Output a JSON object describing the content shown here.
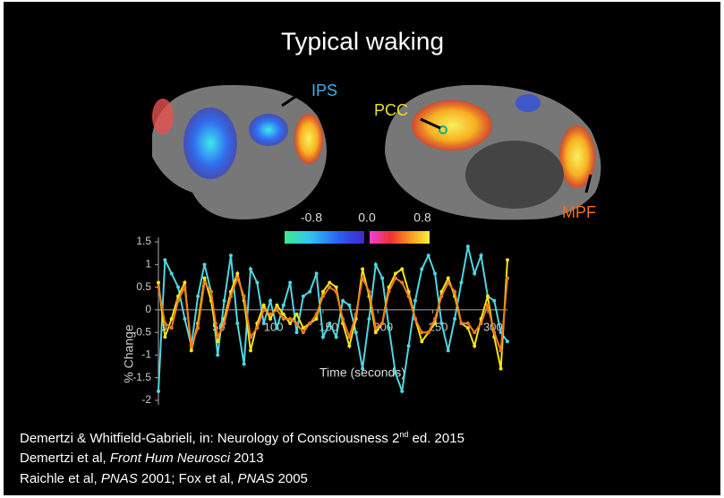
{
  "title": "Typical waking",
  "brain_labels": {
    "ips": "IPS",
    "pcc": "PCC",
    "mpf": "MPF"
  },
  "colorbar": {
    "ticks": [
      {
        "value": -0.8,
        "label": "-0.8"
      },
      {
        "value": 0,
        "label": "0.0"
      },
      {
        "value": 0.8,
        "label": "0.8"
      }
    ]
  },
  "chart_data": {
    "type": "line",
    "xlabel": "Time (seconds)",
    "ylabel": "% Change",
    "x": [
      0,
      6,
      12,
      18,
      24,
      30,
      36,
      42,
      48,
      54,
      60,
      66,
      72,
      78,
      84,
      90,
      96,
      102,
      108,
      114,
      120,
      126,
      132,
      138,
      144,
      150,
      156,
      162,
      168,
      174,
      180,
      186,
      192,
      198,
      204,
      210,
      216,
      222,
      228,
      234,
      240,
      246,
      252,
      258,
      264,
      270,
      276,
      282,
      288,
      294,
      300,
      306,
      312,
      318
    ],
    "series": [
      {
        "color": "#4fd6e0",
        "values": [
          -1.8,
          1.1,
          0.8,
          0.5,
          -0.2,
          -0.8,
          0.3,
          1.0,
          0.4,
          -1.0,
          0.2,
          1.2,
          -0.3,
          -1.2,
          0.9,
          0.6,
          -0.3,
          0.2,
          -0.4,
          0.1,
          0.6,
          -0.5,
          0.3,
          0.4,
          0.8,
          -0.6,
          -0.3,
          -0.6,
          0.2,
          0.1,
          -0.5,
          -1.3,
          -0.2,
          1.0,
          0.7,
          -0.4,
          -1.4,
          -1.8,
          -0.8,
          0.2,
          0.9,
          1.2,
          0.8,
          -0.3,
          -0.9,
          -0.2,
          0.6,
          1.4,
          0.8,
          1.2,
          0.3,
          0.2,
          -0.5,
          -0.7
        ]
      },
      {
        "color": "#f5e21c",
        "values": [
          0.6,
          -0.6,
          -0.2,
          0.3,
          0.6,
          -0.9,
          -0.3,
          0.7,
          0.2,
          -0.7,
          -0.2,
          0.4,
          0.8,
          0.2,
          -0.9,
          -0.3,
          0.1,
          -0.2,
          0.1,
          -0.1,
          -0.3,
          -0.1,
          -0.4,
          -0.3,
          -0.2,
          0.4,
          0.6,
          0.5,
          -0.3,
          -0.8,
          -0.2,
          0.9,
          0.3,
          -0.5,
          -0.3,
          0.5,
          0.8,
          0.9,
          0.4,
          -0.2,
          -0.7,
          -0.5,
          -0.3,
          0.4,
          0.7,
          0.3,
          -0.3,
          -0.4,
          -0.8,
          -0.2,
          0.3,
          -0.6,
          -1.3,
          1.1
        ]
      },
      {
        "color": "#f07a1e",
        "values": [
          0.5,
          -0.3,
          -0.4,
          0.2,
          0.5,
          -0.8,
          -0.4,
          0.6,
          0.4,
          -0.6,
          -0.3,
          0.3,
          0.7,
          0.3,
          -0.6,
          -0.4,
          0.0,
          -0.1,
          0.0,
          -0.2,
          -0.2,
          -0.3,
          -0.5,
          -0.3,
          -0.1,
          0.3,
          0.5,
          0.4,
          -0.2,
          -0.6,
          -0.1,
          0.7,
          0.4,
          -0.4,
          -0.3,
          0.4,
          0.7,
          0.6,
          0.3,
          -0.2,
          -0.5,
          -0.5,
          -0.2,
          0.3,
          0.6,
          0.4,
          -0.3,
          -0.3,
          -0.5,
          -0.3,
          0.1,
          -0.5,
          -0.9,
          0.7
        ]
      }
    ],
    "xlim": [
      0,
      318
    ],
    "xticks": [
      0,
      50,
      100,
      150,
      200,
      250,
      300
    ],
    "ylim": [
      -2.1,
      1.6
    ],
    "yticks": [
      1.5,
      1,
      0.5,
      0,
      -0.5,
      -1,
      -1.5,
      -2
    ]
  },
  "references": [
    [
      "Demertzi & Whitfield-Gabrieli, in: Neurology of Consciousness 2",
      "nd",
      " ed. 2015"
    ],
    [
      "Demertzi et al, ",
      "Front Hum Neurosci",
      " 2013"
    ],
    [
      "Raichle et al, ",
      "PNAS",
      " 2001; Fox et al, ",
      "PNAS",
      " 2005"
    ]
  ]
}
